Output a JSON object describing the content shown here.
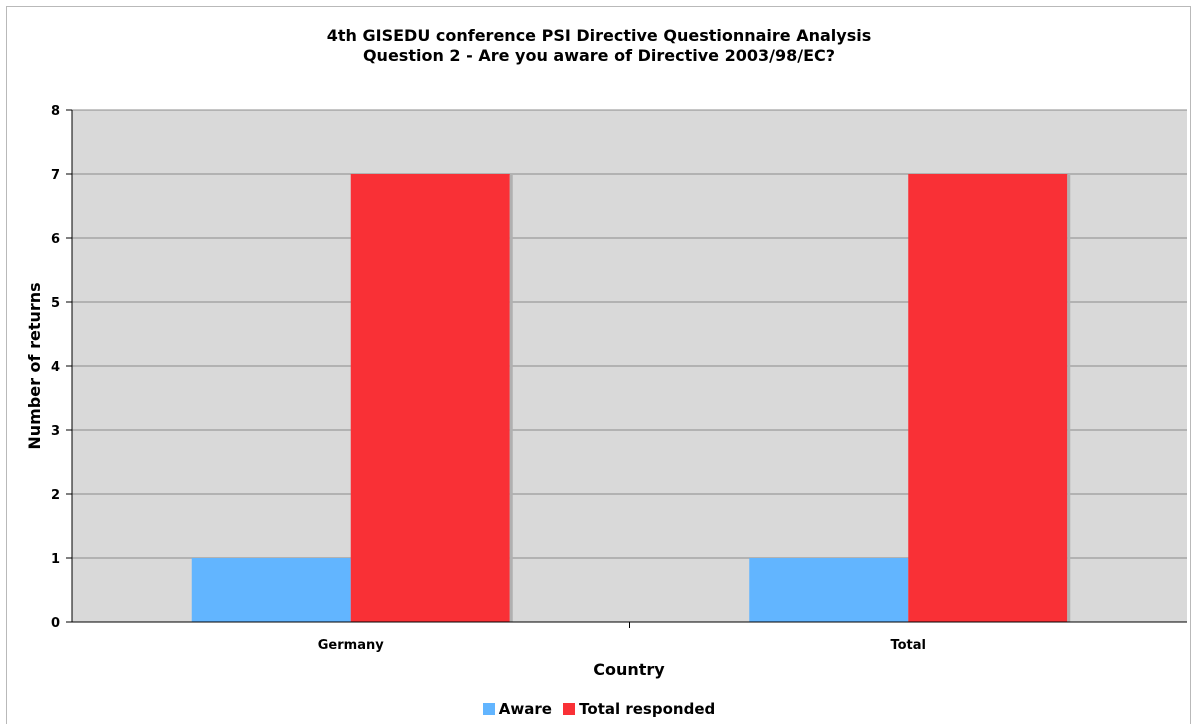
{
  "chart_data": {
    "type": "bar",
    "title": "4th GISEDU conference PSI Directive Questionnaire Analysis",
    "subtitle": "Question 2 - Are you aware of Directive 2003/98/EC?",
    "xlabel": "Country",
    "ylabel": "Number of returns",
    "categories": [
      "Germany",
      "Total"
    ],
    "series": [
      {
        "name": "Aware",
        "values": [
          1,
          1
        ],
        "color": "#62b5ff"
      },
      {
        "name": "Total responded",
        "values": [
          7,
          7
        ],
        "color": "#f93036"
      }
    ],
    "ylim": [
      0,
      8
    ],
    "yticks": [
      0,
      1,
      2,
      3,
      4,
      5,
      6,
      7,
      8
    ],
    "grid": true,
    "legend_position": "bottom",
    "plot_background": "#d9d9d9"
  }
}
